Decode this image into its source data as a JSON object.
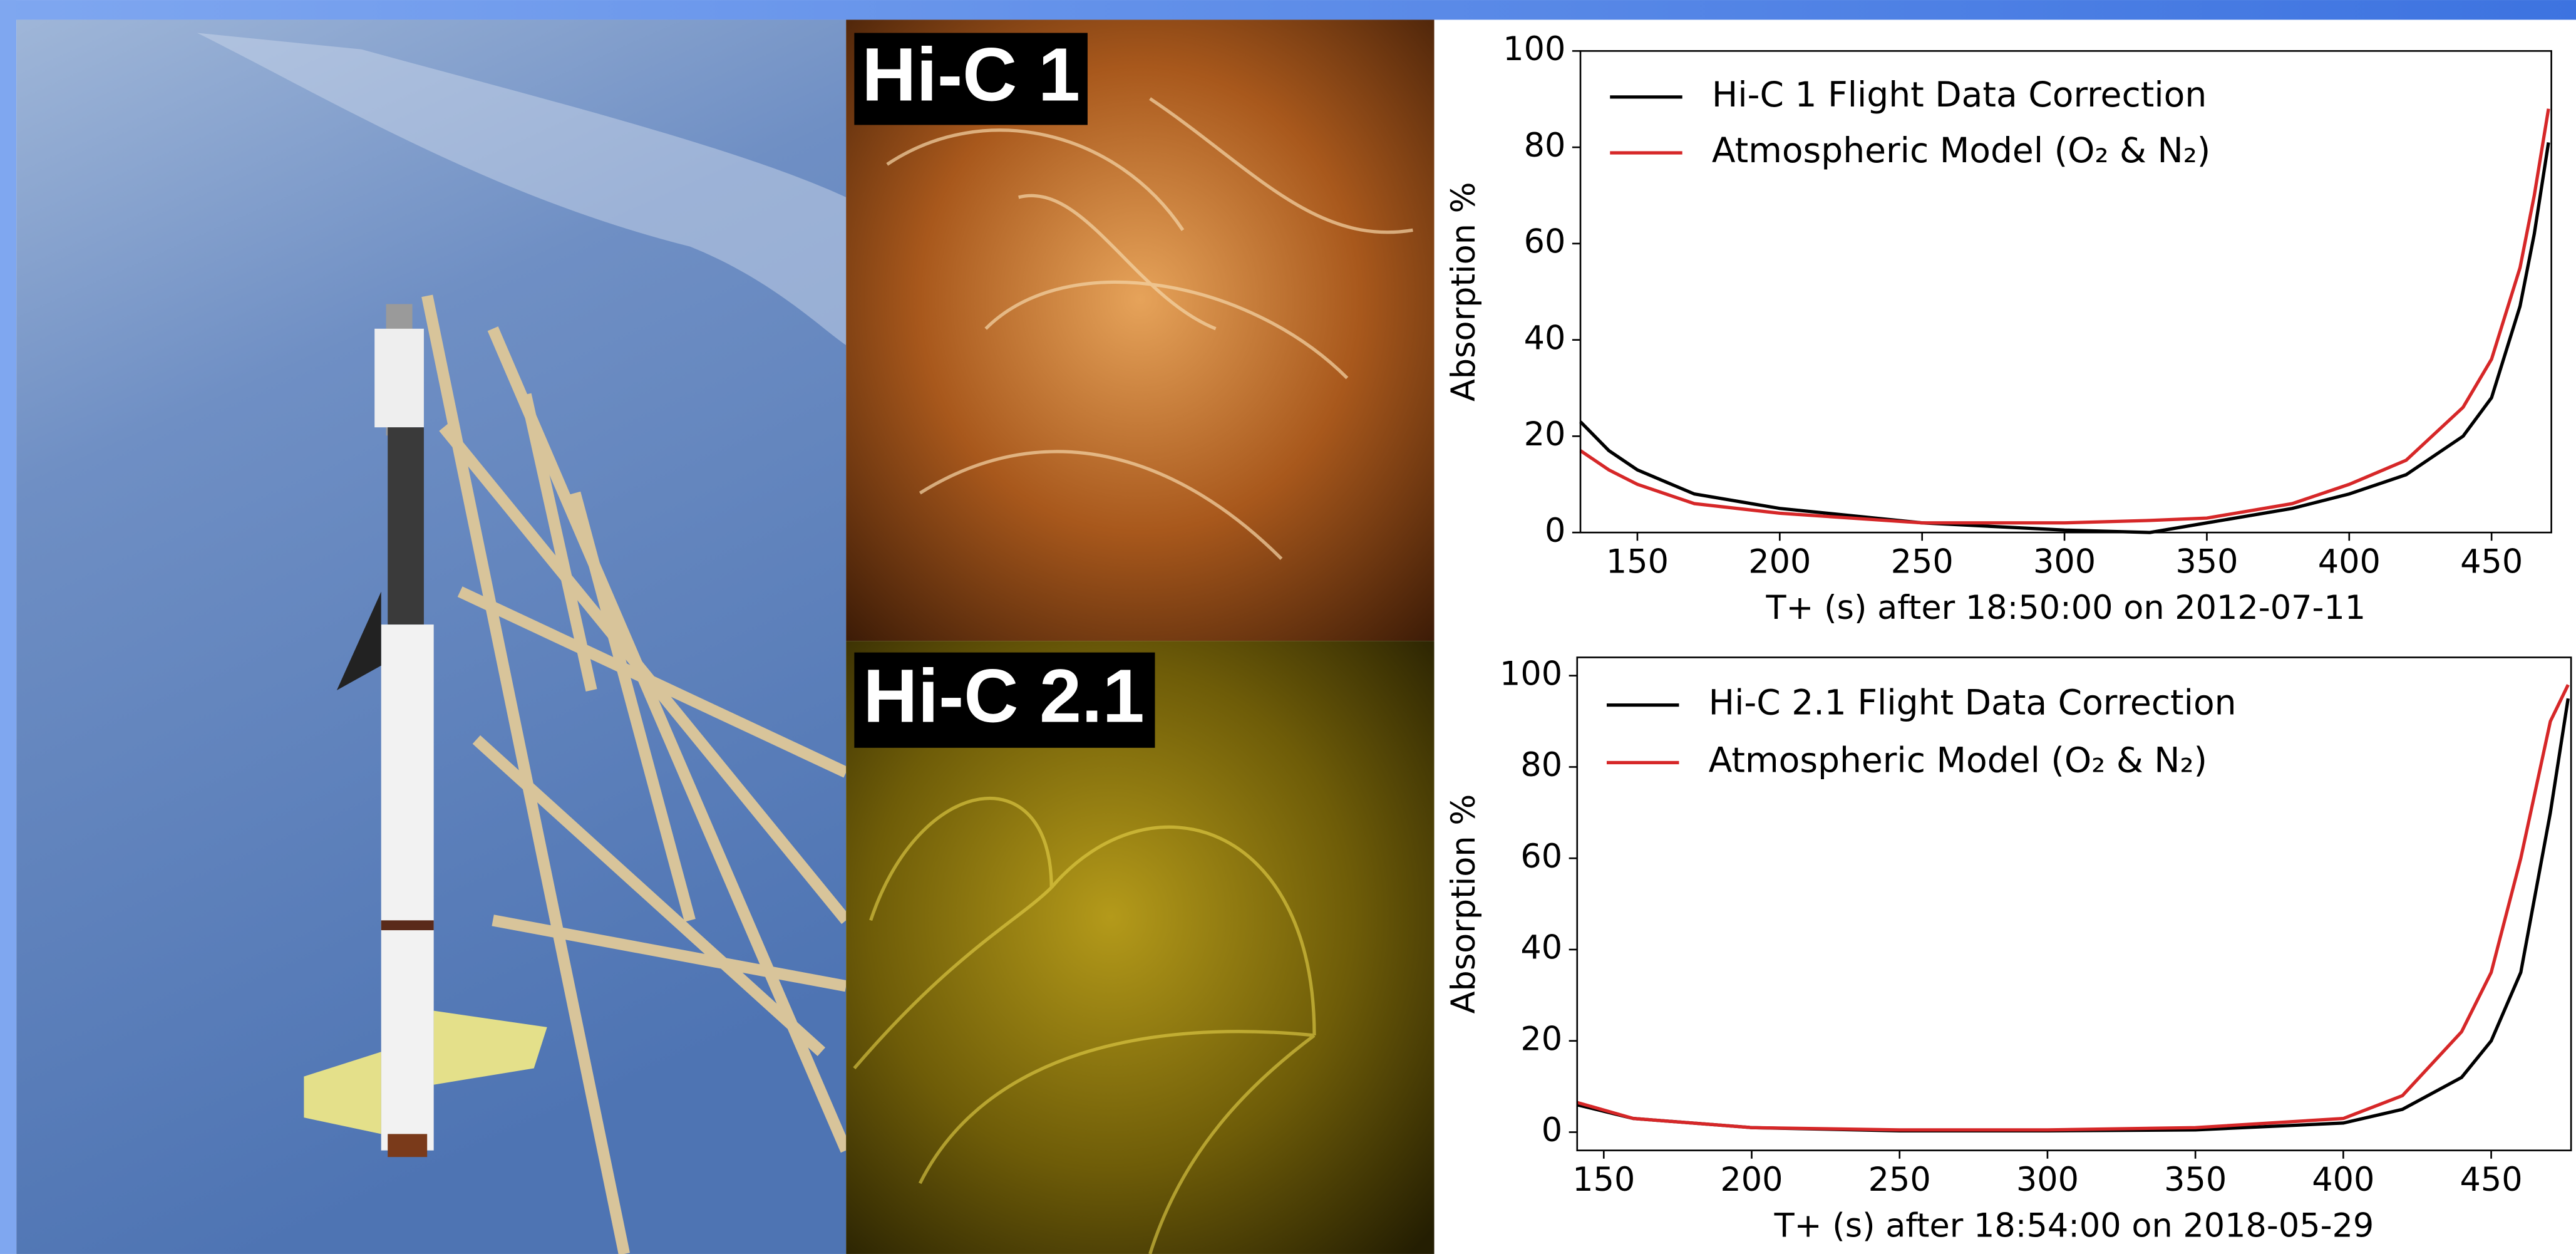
{
  "panels": {
    "labels": [
      "Hi-C 1",
      "Hi-C 2.1"
    ]
  },
  "chart_data": [
    {
      "type": "line",
      "xlabel": "T+ (s) after 18:50:00 on 2012-07-11",
      "ylabel": "Absorption %",
      "x": [
        130,
        140,
        150,
        170,
        200,
        250,
        300,
        330,
        350,
        380,
        400,
        420,
        440,
        450,
        460,
        465,
        470
      ],
      "series": [
        {
          "name": "Hi-C 1 Flight Data Correction",
          "color": "#000000",
          "values": [
            23,
            17,
            13,
            8,
            5,
            2,
            0.5,
            0,
            2,
            5,
            8,
            12,
            20,
            28,
            47,
            62,
            81
          ]
        },
        {
          "name": "Atmospheric Model (O₂ & N₂)",
          "color": "#d62728",
          "values": [
            17,
            13,
            10,
            6,
            4,
            2,
            2,
            2.5,
            3,
            6,
            10,
            15,
            26,
            36,
            55,
            70,
            88
          ]
        }
      ],
      "xlim": [
        130,
        471
      ],
      "ylim": [
        0,
        100
      ],
      "xticks": [
        150,
        200,
        250,
        300,
        350,
        400,
        450
      ],
      "yticks": [
        0,
        20,
        40,
        60,
        80,
        100
      ],
      "legend": "upper left"
    },
    {
      "type": "line",
      "xlabel": "T+ (s) after 18:54:00 on 2018-05-29",
      "ylabel": "Absorption %",
      "x": [
        141,
        160,
        200,
        250,
        300,
        350,
        400,
        420,
        440,
        450,
        460,
        470,
        476
      ],
      "series": [
        {
          "name": "Hi-C 2.1 Flight Data Correction",
          "color": "#000000",
          "values": [
            6,
            3,
            1,
            0.3,
            0.3,
            0.5,
            2,
            5,
            12,
            20,
            35,
            70,
            95
          ]
        },
        {
          "name": "Atmospheric Model (O₂ & N₂)",
          "color": "#d62728",
          "values": [
            6.5,
            3,
            1,
            0.5,
            0.5,
            1,
            3,
            8,
            22,
            35,
            60,
            90,
            98
          ]
        }
      ],
      "xlim": [
        141,
        477
      ],
      "ylim": [
        -4,
        104
      ],
      "xticks": [
        150,
        200,
        250,
        300,
        350,
        400,
        450
      ],
      "yticks": [
        0,
        20,
        40,
        60,
        80,
        100
      ],
      "legend": "upper left"
    }
  ]
}
